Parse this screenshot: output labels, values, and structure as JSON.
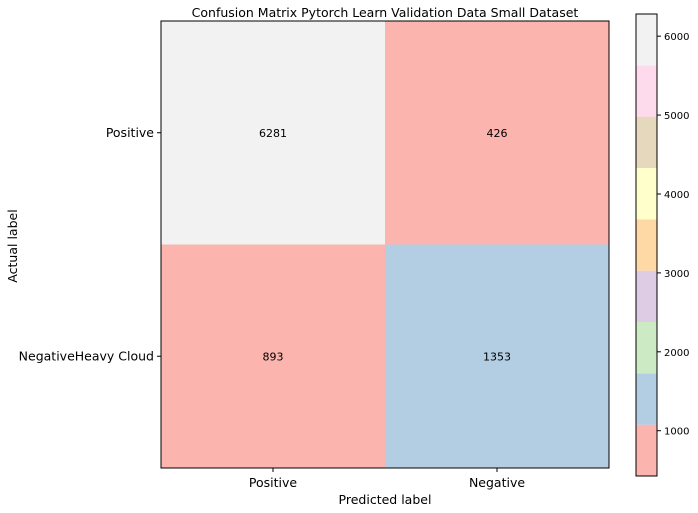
{
  "chart_data": {
    "type": "heatmap",
    "title": "Confusion Matrix Pytorch Learn Validation Data Small Dataset",
    "xlabel": "Predicted label",
    "ylabel": "Actual label",
    "x_categories": [
      "Positive",
      "Negative"
    ],
    "y_categories": [
      "Positive",
      "NegativeHeavy Cloud"
    ],
    "matrix": [
      [
        6281,
        426
      ],
      [
        893,
        1353
      ]
    ],
    "colormap": "Pastel1",
    "colorbar": {
      "range": [
        426,
        6281
      ],
      "ticks": [
        1000,
        2000,
        3000,
        4000,
        5000,
        6000
      ],
      "tick_labels": [
        "1000",
        "2000",
        "3000",
        "4000",
        "5000",
        "6000"
      ]
    },
    "colors": {
      "band_1": "#fbb4ae",
      "band_2": "#b3cde3",
      "band_3": "#ccebc5",
      "band_4": "#decbe4",
      "band_5": "#fed9a6",
      "band_6": "#ffffcc",
      "band_7": "#e5d8bd",
      "band_8": "#fddaec",
      "band_9": "#f2f2f2"
    }
  }
}
